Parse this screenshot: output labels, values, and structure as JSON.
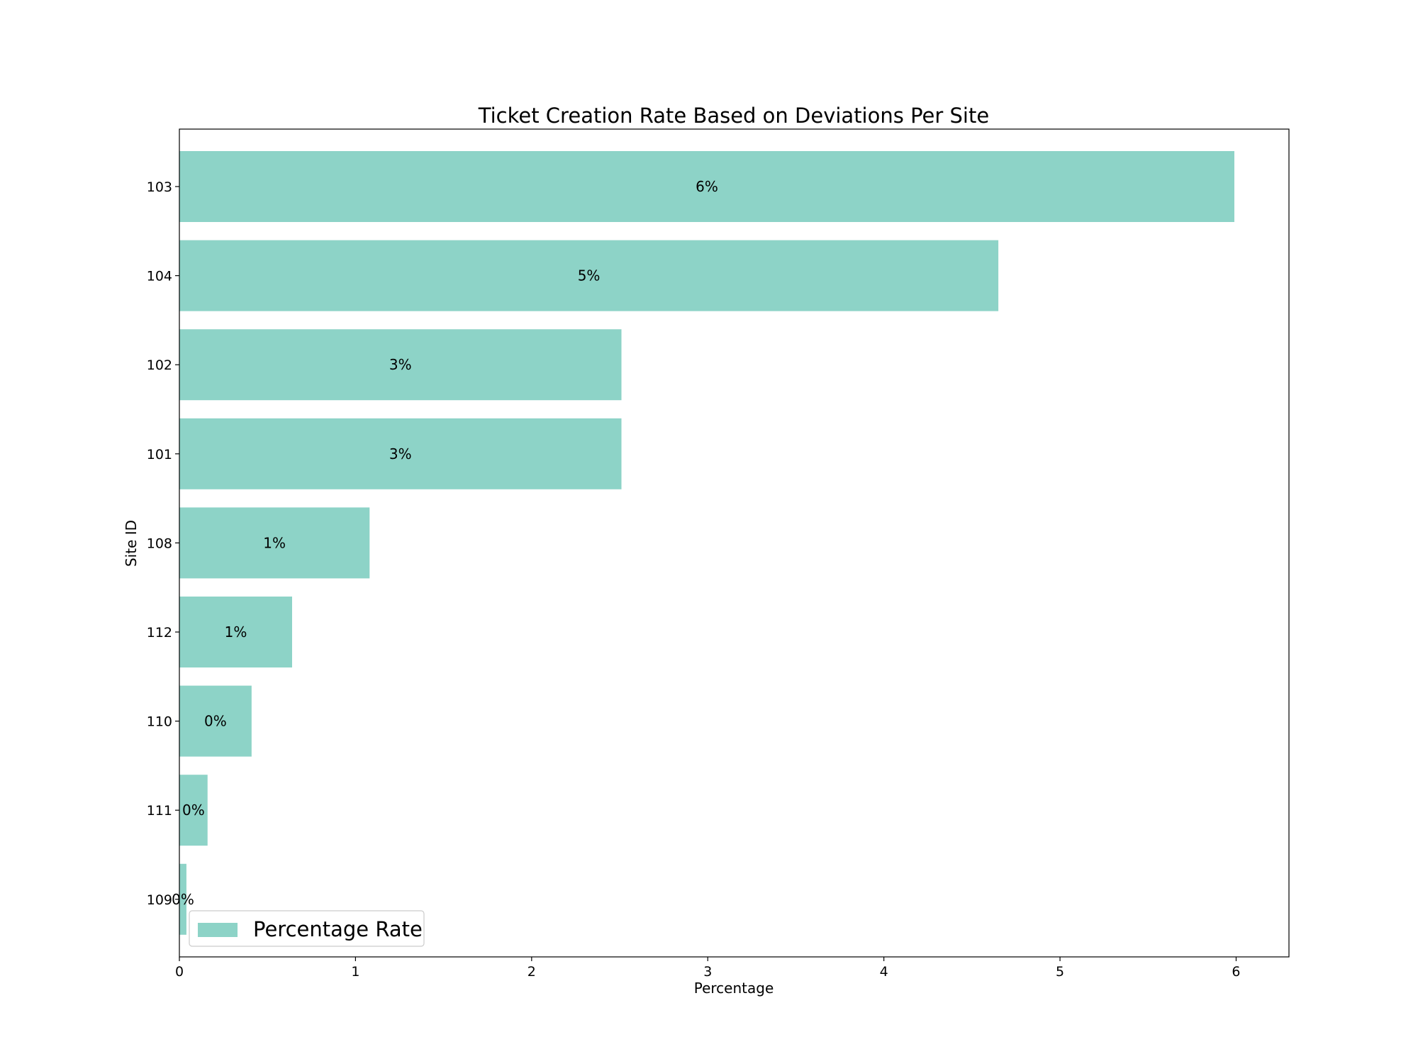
{
  "chart_data": {
    "type": "bar",
    "orientation": "horizontal",
    "title": "Ticket Creation Rate Based on Deviations Per Site",
    "xlabel": "Percentage",
    "ylabel": "Site ID",
    "categories": [
      "103",
      "104",
      "102",
      "101",
      "108",
      "112",
      "110",
      "111",
      "109"
    ],
    "series": [
      {
        "name": "Percentage Rate",
        "values": [
          5.99,
          4.65,
          2.51,
          2.51,
          1.08,
          0.64,
          0.41,
          0.16,
          0.04
        ],
        "labels": [
          "6%",
          "5%",
          "3%",
          "3%",
          "1%",
          "1%",
          "0%",
          "0%",
          "0%"
        ]
      }
    ],
    "xlim": [
      0,
      6.3
    ],
    "xticks": [
      "0",
      "1",
      "2",
      "3",
      "4",
      "5",
      "6"
    ],
    "grid": false,
    "legend_position": "lower-left",
    "colors": {
      "bar": "#8dd3c7"
    }
  }
}
